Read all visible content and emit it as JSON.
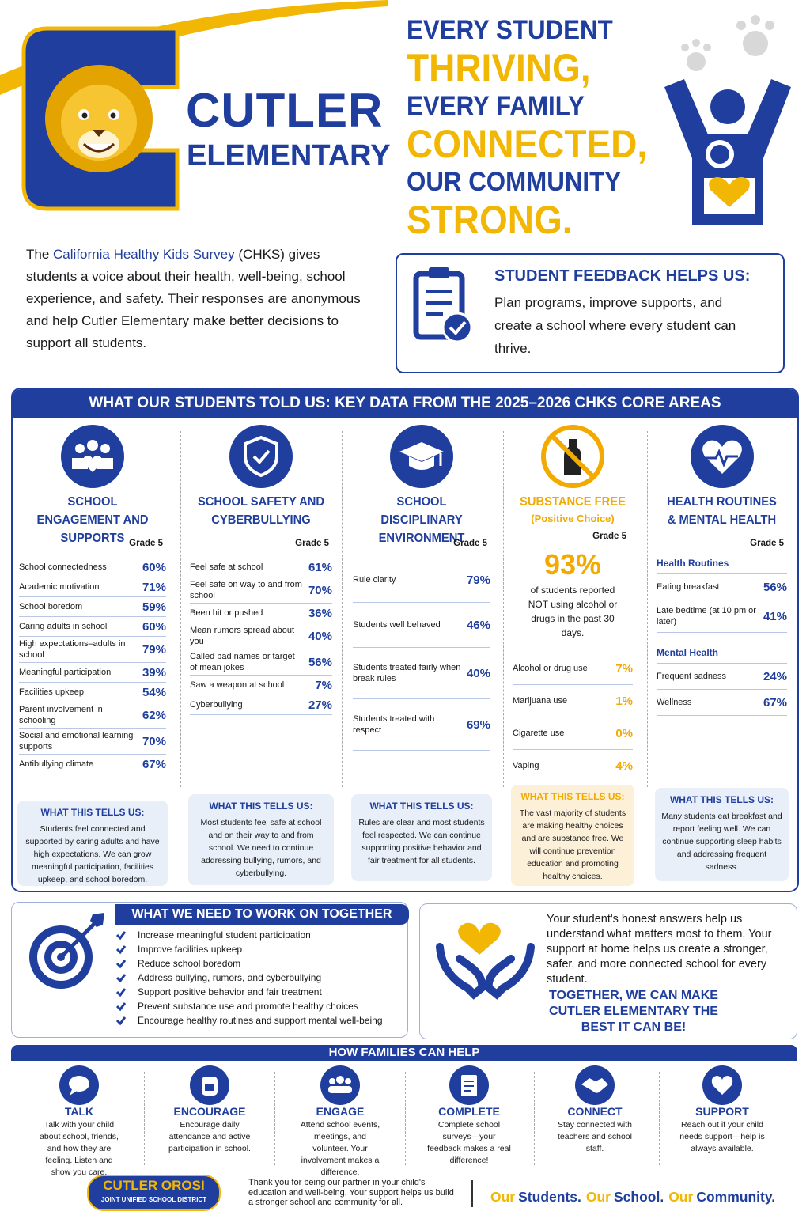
{
  "header": {
    "school_name": [
      "CUTLER",
      "ELEMENTARY"
    ],
    "tagline": [
      "EVERY STUDENT",
      "THRIVING,",
      "EVERY FAMILY",
      "CONNECTED,",
      "OUR COMMUNITY",
      "STRONG."
    ]
  },
  "intro": {
    "before": "The",
    "highlight": "California Healthy Kids Survey",
    "after": "(CHKS) gives students a voice about their health, well-being, school experience, and safety. Their responses are anonymous and help Cutler Elementary make better decisions to support all students."
  },
  "feedback": {
    "title": "STUDENT FEEDBACK HELPS US:",
    "text": "Plan programs, improve supports, and create a school where every student can thrive."
  },
  "key_data": {
    "title": "WHAT OUR STUDENTS TOLD US: KEY DATA FROM THE 2025–2026 CHKS CORE AREAS",
    "columns": [
      {
        "title": "SCHOOL ENGAGEMENT AND SUPPORTS",
        "grade": "Grade 5",
        "sections": [
          {
            "rows": [
              {
                "label": "School connectedness",
                "value": "60%"
              },
              {
                "label": "Academic motivation",
                "value": "71%"
              },
              {
                "label": "School boredom",
                "value": "59%"
              },
              {
                "label": "Caring adults in school",
                "value": "60%"
              },
              {
                "label": "High expectations–adults in school",
                "value": "79%"
              },
              {
                "label": "Meaningful participation",
                "value": "39%"
              },
              {
                "label": "Facilities upkeep",
                "value": "54%"
              },
              {
                "label": "Parent involvement in schooling",
                "value": "62%"
              },
              {
                "label": "Social and emotional learning supports",
                "value": "70%"
              },
              {
                "label": "Antibullying climate",
                "value": "67%"
              }
            ]
          }
        ],
        "tells_title": "WHAT THIS TELLS US:",
        "tells_text": "Students feel connected and supported by caring adults and have high expectations. We can grow meaningful participation, facilities upkeep, and school boredom."
      },
      {
        "title": "SCHOOL SAFETY AND CYBERBULLYING",
        "grade": "Grade 5",
        "sections": [
          {
            "rows": [
              {
                "label": "Feel safe at school",
                "value": "61%"
              },
              {
                "label": "Feel safe on way to and from school",
                "value": "70%"
              },
              {
                "label": "Been hit or pushed",
                "value": "36%"
              },
              {
                "label": "Mean rumors spread about you",
                "value": "40%"
              },
              {
                "label": "Called bad names or target of mean jokes",
                "value": "56%"
              },
              {
                "label": "Saw a weapon at school",
                "value": "7%"
              },
              {
                "label": "Cyberbullying",
                "value": "27%"
              }
            ]
          }
        ],
        "tells_title": "WHAT THIS TELLS US:",
        "tells_text": "Most students feel safe at school and on their way to and from school. We need to continue addressing bullying, rumors, and cyberbullying."
      },
      {
        "title": "SCHOOL DISCIPLINARY ENVIRONMENT",
        "grade": "Grade 5",
        "sections": [
          {
            "rows": [
              {
                "label": "Rule clarity",
                "value": "79%"
              },
              {
                "label": "Students well behaved",
                "value": "46%"
              },
              {
                "label": "Students treated fairly when break rules",
                "value": "40%"
              },
              {
                "label": "Students treated with respect",
                "value": "69%"
              }
            ]
          }
        ],
        "tells_title": "WHAT THIS TELLS US:",
        "tells_text": "Rules are clear and most students feel respected. We can continue supporting positive behavior and fair treatment for all students."
      },
      {
        "title": "SUBSTANCE FREE",
        "subtitle": "(Positive Choice)",
        "grade": "Grade 5",
        "highlight": {
          "value": "93%",
          "text": "of students reported NOT using alcohol or drugs in the past 30 days."
        },
        "sections": [
          {
            "rows": [
              {
                "label": "Alcohol or drug use",
                "value": "7%"
              },
              {
                "label": "Marijuana use",
                "value": "1%"
              },
              {
                "label": "Cigarette use",
                "value": "0%"
              },
              {
                "label": "Vaping",
                "value": "4%"
              }
            ]
          }
        ],
        "tells_title": "WHAT THIS TELLS US:",
        "tells_text": "The vast majority of students are making healthy choices and are substance free. We will continue prevention education and promoting healthy choices."
      },
      {
        "title": "HEALTH ROUTINES & MENTAL HEALTH",
        "grade": "Grade 5",
        "sections": [
          {
            "heading": "Health Routines",
            "rows": [
              {
                "label": "Eating breakfast",
                "value": "56%"
              },
              {
                "label": "Late bedtime (at 10 pm or later)",
                "value": "41%"
              }
            ]
          },
          {
            "heading": "Mental Health",
            "rows": [
              {
                "label": "Frequent sadness",
                "value": "24%"
              },
              {
                "label": "Wellness",
                "value": "67%"
              }
            ]
          }
        ],
        "tells_title": "WHAT THIS TELLS US:",
        "tells_text": "Many students eat breakfast and report feeling well. We can continue supporting sleep habits and addressing frequent sadness."
      }
    ]
  },
  "work_on": {
    "title": "WHAT WE NEED TO WORK ON TOGETHER",
    "items": [
      "Increase meaningful student participation",
      "Improve facilities upkeep",
      "Reduce school boredom",
      "Address bullying, rumors, and cyberbullying",
      "Support positive behavior and fair treatment",
      "Prevent substance use and promote healthy choices",
      "Encourage healthy routines and support mental well-being"
    ]
  },
  "message": {
    "text": "Your student's honest answers help us understand what matters most to them. Your support at home helps us create a stronger, safer, and more connected school for every student.",
    "emphasis": "TOGETHER, WE CAN MAKE CUTLER ELEMENTARY THE BEST IT CAN BE!"
  },
  "families": {
    "title": "HOW FAMILIES CAN HELP",
    "items": [
      {
        "title": "TALK",
        "text": "Talk with your child about school, friends, and how they are feeling. Listen and show you care."
      },
      {
        "title": "ENCOURAGE",
        "text": "Encourage daily attendance and active participation in school."
      },
      {
        "title": "ENGAGE",
        "text": "Attend school events, meetings, and volunteer. Your involvement makes a difference."
      },
      {
        "title": "COMPLETE",
        "text": "Complete school surveys—your feedback makes a real difference!"
      },
      {
        "title": "CONNECT",
        "text": "Stay connected with teachers and school staff."
      },
      {
        "title": "SUPPORT",
        "text": "Reach out if your child needs support—help is always available."
      }
    ]
  },
  "footer": {
    "logo": [
      "CUTLER OROSI",
      "JOINT UNIFIED SCHOOL DISTRICT"
    ],
    "thanks": "Thank you for being our partner in your child's education and well-being. Your support helps us build a stronger school and community for all.",
    "slogan": [
      "Our",
      "Students.",
      "Our",
      "School.",
      "Our",
      "Community."
    ]
  }
}
